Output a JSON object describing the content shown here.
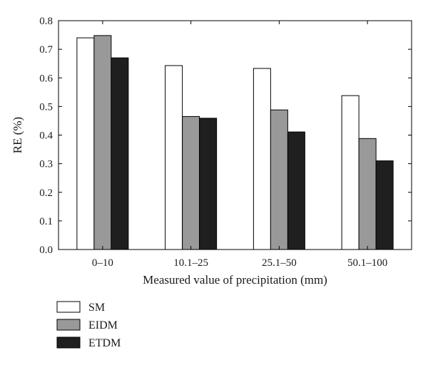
{
  "chart_data": {
    "type": "bar",
    "xlabel": "Measured value of precipitation (mm)",
    "ylabel": "RE (%)",
    "categories": [
      "0–10",
      "10.1–25",
      "25.1–50",
      "50.1–100"
    ],
    "series": [
      {
        "name": "SM",
        "color": "#ffffff",
        "values": [
          0.74,
          0.643,
          0.633,
          0.538
        ]
      },
      {
        "name": "EIDM",
        "color": "#999999",
        "values": [
          0.748,
          0.465,
          0.488,
          0.388
        ]
      },
      {
        "name": "ETDM",
        "color": "#1f1f1f",
        "values": [
          0.67,
          0.459,
          0.411,
          0.31
        ]
      }
    ],
    "ylim": [
      0,
      0.8
    ],
    "yticks": [
      "0.0",
      "0.1",
      "0.2",
      "0.3",
      "0.4",
      "0.5",
      "0.6",
      "0.7",
      "0.8"
    ],
    "grid": false,
    "legend_position": "bottom-left"
  }
}
